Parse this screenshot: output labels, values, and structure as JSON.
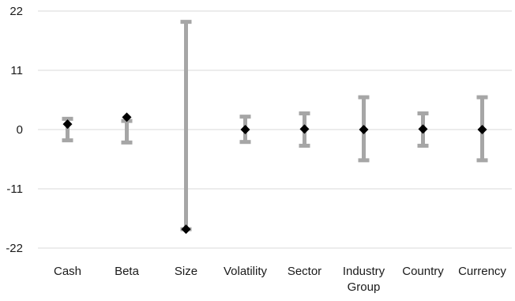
{
  "chart_data": {
    "type": "scatter",
    "title": "",
    "xlabel": "",
    "ylabel": "",
    "ylim": [
      -22,
      22
    ],
    "yticks": [
      22,
      11,
      0,
      -11,
      -22
    ],
    "grid": true,
    "legend": "none",
    "categories": [
      [
        "Cash"
      ],
      [
        "Beta"
      ],
      [
        "Size"
      ],
      [
        "Volatility"
      ],
      [
        "Sector"
      ],
      [
        "Industry",
        "Group"
      ],
      [
        "Country"
      ],
      [
        "Currency"
      ]
    ],
    "series": [
      {
        "kind": "range",
        "low": [
          -2,
          -2.4,
          -18.5,
          -2.3,
          -3,
          -5.7,
          -3,
          -5.7
        ],
        "high": [
          2,
          1.6,
          20,
          2.4,
          3,
          6,
          3,
          6
        ]
      },
      {
        "kind": "point",
        "values": [
          1,
          2.3,
          -18.5,
          0,
          0.1,
          0,
          0.1,
          0
        ]
      }
    ],
    "colors": {
      "range": "#a6a6a6",
      "marker": "#000000",
      "grid": "#d9d9d9"
    }
  }
}
